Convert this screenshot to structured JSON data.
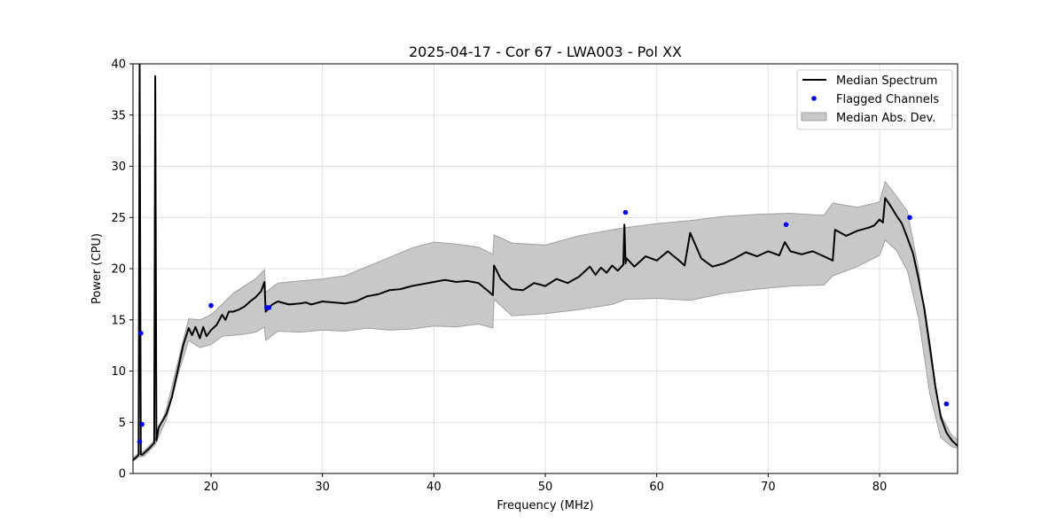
{
  "chart_data": {
    "type": "line",
    "title": "2025-04-17 - Cor 67 - LWA003 - Pol XX",
    "xlabel": "Frequency (MHz)",
    "ylabel": "Power (CPU)",
    "xlim": [
      13,
      87
    ],
    "ylim": [
      0,
      40
    ],
    "xticks": [
      20,
      30,
      40,
      50,
      60,
      70,
      80
    ],
    "yticks": [
      0,
      5,
      10,
      15,
      20,
      25,
      30,
      35,
      40
    ],
    "grid": true,
    "legend_position": "top-right",
    "legend": [
      "Median Spectrum",
      "Flagged Channels",
      "Median Abs. Dev."
    ],
    "colors": {
      "line": "#000000",
      "flagged": "#0000ff",
      "band": "#c8c8c8",
      "band_edge": "#a0a0a0",
      "grid": "#e0e0e0"
    },
    "series": [
      {
        "name": "Median Spectrum",
        "x": [
          13.0,
          13.5,
          13.6,
          13.7,
          13.8,
          14.5,
          14.9,
          15.0,
          15.1,
          15.3,
          16.0,
          16.5,
          17.0,
          17.5,
          18.0,
          18.3,
          18.6,
          19.0,
          19.3,
          19.6,
          20.0,
          20.5,
          21.0,
          21.3,
          21.6,
          22.0,
          22.5,
          23.0,
          23.5,
          24.0,
          24.5,
          24.8,
          24.9,
          25.5,
          26.0,
          27.0,
          28.0,
          28.5,
          29.0,
          30.0,
          31.0,
          32.0,
          33.0,
          34.0,
          35.0,
          36.0,
          37.0,
          38.0,
          39.0,
          40.0,
          41.0,
          42.0,
          43.0,
          44.0,
          45.0,
          45.3,
          45.4,
          46.0,
          47.0,
          48.0,
          49.0,
          50.0,
          51.0,
          52.0,
          53.0,
          54.0,
          54.5,
          55.0,
          55.5,
          56.0,
          56.5,
          57.0,
          57.1,
          57.2,
          57.3,
          58.0,
          59.0,
          60.0,
          61.0,
          62.0,
          62.5,
          63.0,
          64.0,
          65.0,
          66.0,
          67.0,
          68.0,
          69.0,
          70.0,
          71.0,
          71.5,
          72.0,
          73.0,
          74.0,
          75.0,
          75.8,
          76.0,
          77.0,
          78.0,
          79.0,
          79.5,
          80.0,
          80.3,
          80.5,
          81.0,
          81.5,
          82.0,
          82.5,
          83.0,
          83.5,
          84.0,
          84.5,
          85.0,
          85.5,
          86.0,
          86.5,
          87.0
        ],
        "values": [
          1.3,
          1.8,
          40.0,
          1.9,
          1.8,
          2.5,
          3.0,
          38.8,
          3.2,
          4.5,
          5.8,
          7.5,
          10.0,
          12.5,
          14.2,
          13.5,
          14.3,
          13.2,
          14.3,
          13.4,
          14.0,
          14.5,
          15.5,
          15.0,
          15.8,
          15.8,
          16.0,
          16.3,
          16.8,
          17.2,
          17.8,
          18.7,
          15.8,
          16.5,
          16.8,
          16.5,
          16.6,
          16.7,
          16.5,
          16.8,
          16.7,
          16.6,
          16.8,
          17.3,
          17.5,
          17.9,
          18.0,
          18.3,
          18.5,
          18.7,
          18.9,
          18.7,
          18.8,
          18.6,
          17.7,
          17.4,
          20.3,
          19.0,
          18.0,
          17.9,
          18.6,
          18.3,
          19.0,
          18.6,
          19.2,
          20.2,
          19.4,
          20.1,
          19.6,
          20.3,
          19.8,
          20.4,
          24.3,
          20.5,
          21.0,
          20.2,
          21.2,
          20.8,
          21.7,
          20.8,
          20.3,
          23.5,
          21.0,
          20.2,
          20.5,
          21.0,
          21.6,
          21.2,
          21.7,
          21.3,
          22.6,
          21.7,
          21.4,
          21.7,
          21.2,
          20.8,
          23.8,
          23.2,
          23.7,
          24.0,
          24.2,
          24.8,
          24.5,
          26.9,
          26.1,
          25.2,
          24.4,
          23.0,
          21.5,
          19.0,
          16.2,
          12.5,
          8.5,
          5.5,
          4.0,
          3.2,
          2.7
        ]
      },
      {
        "name": "Median Abs. Dev.",
        "x": [
          13.0,
          13.5,
          14.0,
          15.0,
          16.0,
          17.0,
          18.0,
          19.0,
          20.0,
          21.0,
          22.0,
          23.0,
          24.0,
          24.8,
          24.9,
          26.0,
          28.0,
          30.0,
          32.0,
          34.0,
          36.0,
          38.0,
          40.0,
          42.0,
          44.0,
          45.3,
          45.4,
          47.0,
          50.0,
          53.0,
          56.0,
          57.2,
          60.0,
          63.0,
          66.0,
          69.0,
          72.0,
          75.0,
          75.8,
          78.0,
          80.0,
          80.5,
          81.5,
          82.5,
          83.5,
          84.5,
          85.5,
          86.5,
          87.0
        ],
        "lower": [
          1.2,
          1.6,
          1.7,
          2.8,
          5.3,
          9.5,
          13.0,
          12.3,
          12.6,
          13.4,
          13.5,
          13.6,
          13.8,
          14.3,
          13.0,
          13.9,
          13.8,
          14.0,
          13.9,
          14.2,
          14.0,
          14.1,
          14.4,
          14.3,
          14.6,
          14.2,
          17.0,
          15.4,
          15.6,
          16.0,
          16.5,
          17.0,
          17.1,
          16.9,
          17.6,
          18.0,
          18.3,
          18.4,
          19.3,
          20.2,
          21.3,
          22.8,
          21.8,
          19.8,
          15.2,
          7.8,
          3.5,
          2.6,
          2.5
        ],
        "upper": [
          1.5,
          2.0,
          2.2,
          3.3,
          6.3,
          10.8,
          15.1,
          15.0,
          15.5,
          16.5,
          17.6,
          18.3,
          19.0,
          19.9,
          17.7,
          18.6,
          18.8,
          19.0,
          19.3,
          20.2,
          21.1,
          22.0,
          22.6,
          22.4,
          22.1,
          21.4,
          23.3,
          22.5,
          22.3,
          23.2,
          23.8,
          24.0,
          24.4,
          24.7,
          25.1,
          25.3,
          25.4,
          25.2,
          26.4,
          26.0,
          26.5,
          28.5,
          27.1,
          25.6,
          19.9,
          11.6,
          5.7,
          3.7,
          3.3
        ]
      },
      {
        "name": "Flagged Channels",
        "x": [
          13.6,
          13.7,
          13.8,
          20.0,
          25.0,
          25.2,
          57.2,
          71.6,
          82.7,
          86.0
        ],
        "values": [
          3.1,
          13.7,
          4.8,
          16.4,
          16.2,
          16.2,
          25.5,
          24.3,
          25.0,
          6.8
        ]
      }
    ]
  }
}
